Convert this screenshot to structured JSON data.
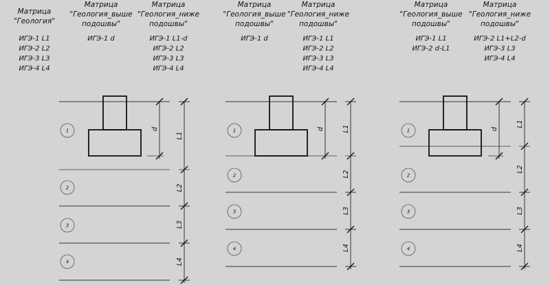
{
  "schemes": [
    {
      "columns": [
        {
          "header": [
            "Матрица",
            "\"Геология\""
          ],
          "rows": [
            "ИГЭ-1 L1",
            "ИГЭ-2 L2",
            "ИГЭ-3 L3",
            "ИГЭ-4 L4"
          ]
        },
        {
          "header": [
            "Матрица",
            "\"Геология_выше",
            "подошвы\""
          ],
          "rows": [
            "ИГЭ-1 d"
          ]
        },
        {
          "header": [
            "Матрица",
            "\"Геология_ниже",
            "подошвы\""
          ],
          "rows": [
            "ИГЭ-1 L1-d",
            "ИГЭ-2 L2",
            "ИГЭ-3 L3",
            "ИГЭ-4 L4"
          ]
        }
      ],
      "layers": [
        "1",
        "2",
        "3",
        "4"
      ],
      "dims": {
        "d": "d",
        "L": [
          "L1",
          "L2",
          "L3",
          "L4"
        ]
      }
    },
    {
      "columns": [
        {
          "header": [
            "Матрица",
            "\"Геология_выше",
            "подошвы\""
          ],
          "rows": [
            "ИГЭ-1 d"
          ]
        },
        {
          "header": [
            "Матрица",
            "\"Геология_ниже",
            "подошвы\""
          ],
          "rows": [
            "ИГЭ-1 L1",
            "ИГЭ-2 L2",
            "ИГЭ-3 L3",
            "ИГЭ-4 L4"
          ]
        }
      ],
      "layers": [
        "1",
        "2",
        "3",
        "4"
      ],
      "dims": {
        "d": "d",
        "L": [
          "L1",
          "L2",
          "L3",
          "L4"
        ]
      }
    },
    {
      "columns": [
        {
          "header": [
            "Матрица",
            "\"Геология_выше",
            "подошвы\""
          ],
          "rows": [
            "ИГЭ-1 L1",
            "ИГЭ-2 d-L1"
          ]
        },
        {
          "header": [
            "Матрица",
            "\"Геология_ниже",
            "подошвы\""
          ],
          "rows": [
            "ИГЭ-2 L1+L2-d",
            "ИГЭ-3 L3",
            "ИГЭ-4 L4"
          ]
        }
      ],
      "layers": [
        "1",
        "2",
        "3",
        "4"
      ],
      "dims": {
        "d": "d",
        "L": [
          "L1",
          "L2",
          "L3",
          "L4"
        ]
      }
    }
  ]
}
